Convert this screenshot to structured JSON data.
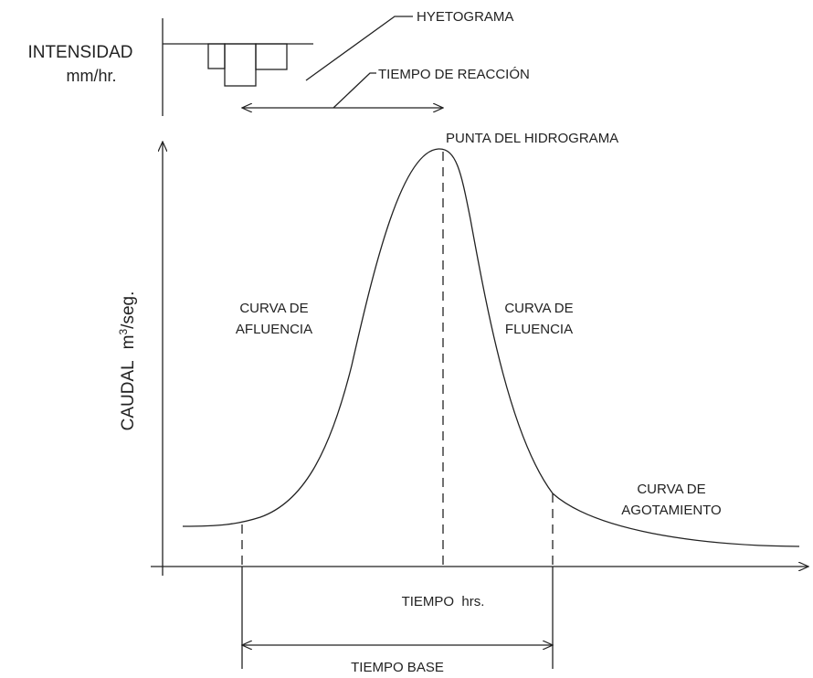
{
  "hyetograph": {
    "axis_label": "INTENSIDAD",
    "axis_unit": "mm/hr.",
    "title": "HYETOGRAMA",
    "reaction_time": "TIEMPO DE REACCIÓN"
  },
  "hydrograph": {
    "peak": "PUNTA DEL HIDROGRAMA",
    "y_axis": {
      "label": "CAUDAL",
      "unit_base": "m",
      "unit_exp": "3",
      "unit_rest": "/seg."
    },
    "x_axis": {
      "label": "TIEMPO  hrs."
    },
    "rising_limb": [
      "CURVA DE",
      "AFLUENCIA"
    ],
    "falling_limb": [
      "CURVA DE",
      "FLUENCIA"
    ],
    "recession": [
      "CURVA DE",
      "AGOTAMIENTO"
    ],
    "base_time": "TIEMPO BASE"
  }
}
